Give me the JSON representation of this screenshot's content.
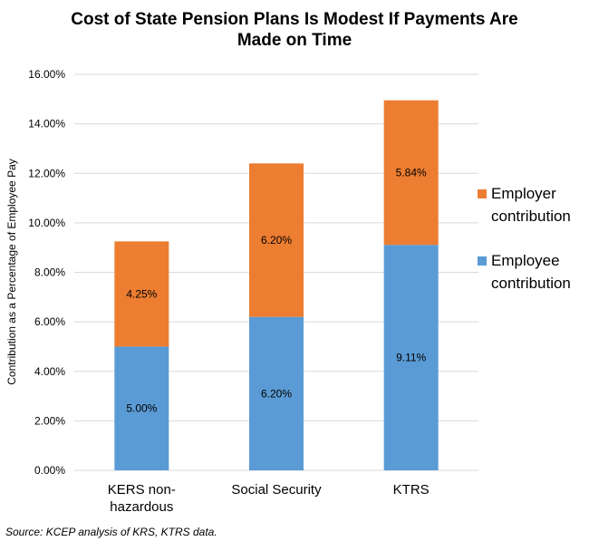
{
  "chart_data": {
    "type": "bar",
    "stacked": true,
    "title_lines": [
      "Cost of State Pension Plans Is Modest If Payments Are",
      "Made on Time"
    ],
    "xlabel": "",
    "ylabel": "Contribution as a Percentage of Employee Pay",
    "categories": [
      [
        "KERS non-",
        "hazardous"
      ],
      [
        "Social Security"
      ],
      [
        "KTRS"
      ]
    ],
    "ylim": [
      0,
      16
    ],
    "yticks": [
      "0.00%",
      "2.00%",
      "4.00%",
      "6.00%",
      "8.00%",
      "10.00%",
      "12.00%",
      "14.00%",
      "16.00%"
    ],
    "ytick_values": [
      0,
      2,
      4,
      6,
      8,
      10,
      12,
      14,
      16
    ],
    "grid": true,
    "legend_position": "right",
    "series": [
      {
        "name": "Employee contribution",
        "legend_lines": [
          "Employee",
          "contribution"
        ],
        "color": "#5b9bd5",
        "values": [
          5.0,
          6.2,
          9.11
        ],
        "labels": [
          "5.00%",
          "6.20%",
          "9.11%"
        ]
      },
      {
        "name": "Employer contribution",
        "legend_lines": [
          "Employer",
          "contribution"
        ],
        "color": "#ed7d31",
        "values": [
          4.25,
          6.2,
          5.84
        ],
        "labels": [
          "4.25%",
          "6.20%",
          "5.84%"
        ]
      }
    ],
    "legend_order": [
      1,
      0
    ]
  },
  "source": "Source: KCEP analysis of KRS, KTRS data."
}
